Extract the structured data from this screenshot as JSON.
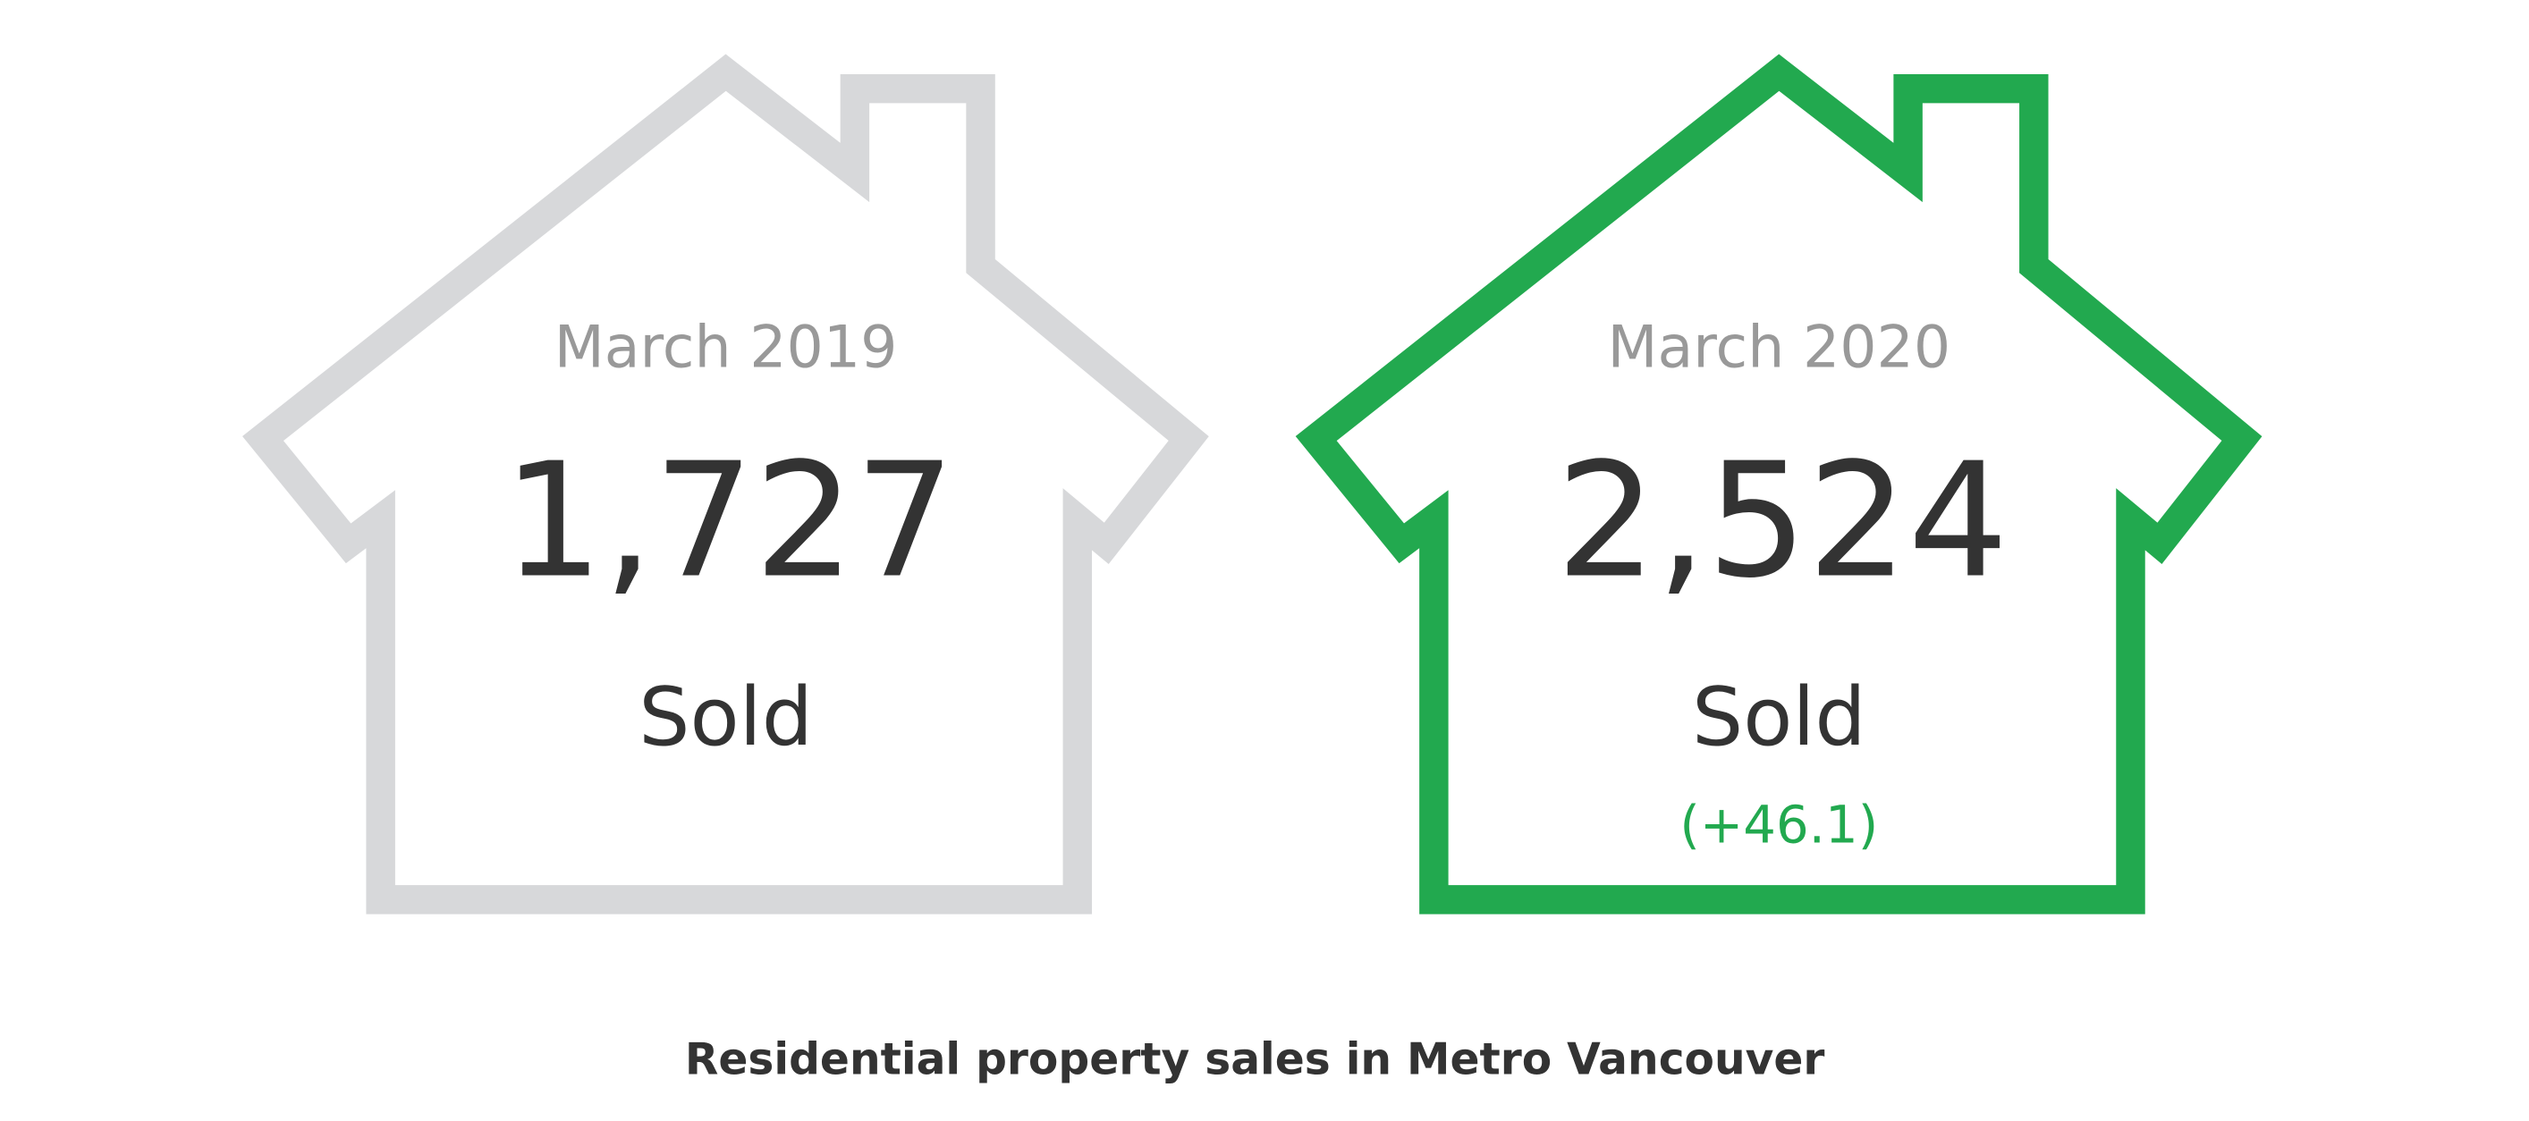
{
  "cards": [
    {
      "period": "March 2019",
      "value": "1,727",
      "unit": "Sold"
    },
    {
      "period": "March 2020",
      "value": "2,524",
      "unit": "Sold",
      "change": "(+46.1)"
    }
  ],
  "caption": "Residential property sales in Metro Vancouver"
}
